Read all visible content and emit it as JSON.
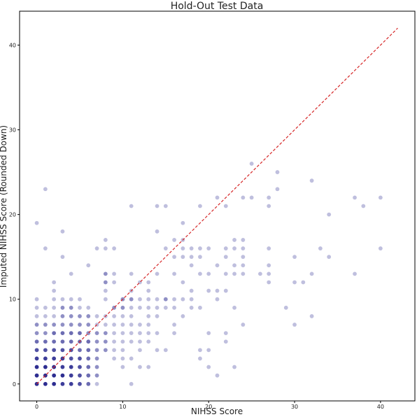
{
  "chart_data": {
    "type": "scatter",
    "title": "Hold-Out Test Data",
    "xlabel": "NIHSS Score",
    "ylabel": "Imputed NIHSS Score (Rounded Down)",
    "xlim": [
      -2,
      44
    ],
    "ylim": [
      -2,
      44
    ],
    "xticks": [
      0,
      10,
      20,
      30,
      40
    ],
    "yticks": [
      0,
      10,
      20,
      30,
      40
    ],
    "grid": false,
    "point_color": "#00007a",
    "line_color": "#d62728",
    "reference_line": {
      "x": [
        0,
        42
      ],
      "y": [
        0,
        42
      ],
      "style": "dashed"
    },
    "points": [
      [
        0,
        0,
        6
      ],
      [
        0,
        1,
        6
      ],
      [
        0,
        2,
        6
      ],
      [
        0,
        3,
        5
      ],
      [
        0,
        4,
        4
      ],
      [
        0,
        5,
        3
      ],
      [
        0,
        6,
        2
      ],
      [
        0,
        7,
        2
      ],
      [
        0,
        8,
        1
      ],
      [
        0,
        9,
        1
      ],
      [
        0,
        10,
        1
      ],
      [
        0,
        19,
        1
      ],
      [
        1,
        0,
        6
      ],
      [
        1,
        1,
        6
      ],
      [
        1,
        2,
        6
      ],
      [
        1,
        3,
        5
      ],
      [
        1,
        4,
        4
      ],
      [
        1,
        5,
        3
      ],
      [
        1,
        6,
        2
      ],
      [
        1,
        7,
        2
      ],
      [
        1,
        8,
        1
      ],
      [
        1,
        9,
        1
      ],
      [
        1,
        16,
        1
      ],
      [
        1,
        23,
        1
      ],
      [
        2,
        0,
        6
      ],
      [
        2,
        1,
        6
      ],
      [
        2,
        2,
        6
      ],
      [
        2,
        3,
        5
      ],
      [
        2,
        4,
        4
      ],
      [
        2,
        5,
        3
      ],
      [
        2,
        6,
        3
      ],
      [
        2,
        7,
        2
      ],
      [
        2,
        8,
        1
      ],
      [
        2,
        9,
        1
      ],
      [
        2,
        10,
        1
      ],
      [
        2,
        11,
        1
      ],
      [
        2,
        12,
        1
      ],
      [
        3,
        0,
        5
      ],
      [
        3,
        1,
        6
      ],
      [
        3,
        2,
        5
      ],
      [
        3,
        3,
        5
      ],
      [
        3,
        4,
        4
      ],
      [
        3,
        5,
        3
      ],
      [
        3,
        6,
        3
      ],
      [
        3,
        7,
        2
      ],
      [
        3,
        8,
        2
      ],
      [
        3,
        9,
        2
      ],
      [
        3,
        10,
        1
      ],
      [
        3,
        15,
        1
      ],
      [
        3,
        18,
        1
      ],
      [
        4,
        0,
        5
      ],
      [
        4,
        1,
        5
      ],
      [
        4,
        2,
        5
      ],
      [
        4,
        3,
        4
      ],
      [
        4,
        4,
        4
      ],
      [
        4,
        5,
        3
      ],
      [
        4,
        6,
        3
      ],
      [
        4,
        7,
        2
      ],
      [
        4,
        8,
        2
      ],
      [
        4,
        9,
        2
      ],
      [
        4,
        10,
        1
      ],
      [
        4,
        13,
        1
      ],
      [
        5,
        0,
        4
      ],
      [
        5,
        1,
        4
      ],
      [
        5,
        2,
        4
      ],
      [
        5,
        3,
        4
      ],
      [
        5,
        4,
        3
      ],
      [
        5,
        5,
        3
      ],
      [
        5,
        6,
        3
      ],
      [
        5,
        7,
        2
      ],
      [
        5,
        8,
        2
      ],
      [
        5,
        9,
        1
      ],
      [
        5,
        10,
        1
      ],
      [
        6,
        0,
        3
      ],
      [
        6,
        1,
        3
      ],
      [
        6,
        2,
        3
      ],
      [
        6,
        3,
        3
      ],
      [
        6,
        4,
        3
      ],
      [
        6,
        5,
        3
      ],
      [
        6,
        6,
        2
      ],
      [
        6,
        7,
        2
      ],
      [
        6,
        8,
        2
      ],
      [
        6,
        9,
        1
      ],
      [
        6,
        14,
        1
      ],
      [
        7,
        0,
        1
      ],
      [
        7,
        1,
        2
      ],
      [
        7,
        2,
        2
      ],
      [
        7,
        3,
        2
      ],
      [
        7,
        4,
        2
      ],
      [
        7,
        5,
        2
      ],
      [
        7,
        6,
        2
      ],
      [
        7,
        7,
        1
      ],
      [
        7,
        8,
        1
      ],
      [
        7,
        16,
        1
      ],
      [
        8,
        4,
        2
      ],
      [
        8,
        5,
        2
      ],
      [
        8,
        6,
        2
      ],
      [
        8,
        7,
        1
      ],
      [
        8,
        8,
        1
      ],
      [
        8,
        10,
        1
      ],
      [
        8,
        11,
        1
      ],
      [
        8,
        12,
        2
      ],
      [
        8,
        13,
        2
      ],
      [
        8,
        16,
        1
      ],
      [
        8,
        17,
        1
      ],
      [
        9,
        3,
        1
      ],
      [
        9,
        4,
        1
      ],
      [
        9,
        5,
        1
      ],
      [
        9,
        6,
        1
      ],
      [
        9,
        7,
        1
      ],
      [
        9,
        8,
        1
      ],
      [
        9,
        9,
        2
      ],
      [
        9,
        12,
        1
      ],
      [
        9,
        13,
        1
      ],
      [
        9,
        16,
        1
      ],
      [
        10,
        2,
        1
      ],
      [
        10,
        3,
        1
      ],
      [
        10,
        4,
        1
      ],
      [
        10,
        5,
        1
      ],
      [
        10,
        6,
        1
      ],
      [
        10,
        7,
        1
      ],
      [
        10,
        8,
        1
      ],
      [
        10,
        9,
        2
      ],
      [
        10,
        10,
        2
      ],
      [
        11,
        0,
        1
      ],
      [
        11,
        3,
        1
      ],
      [
        11,
        5,
        1
      ],
      [
        11,
        6,
        1
      ],
      [
        11,
        7,
        1
      ],
      [
        11,
        8,
        1
      ],
      [
        11,
        9,
        1
      ],
      [
        11,
        10,
        2
      ],
      [
        11,
        11,
        1
      ],
      [
        11,
        13,
        1
      ],
      [
        11,
        21,
        1
      ],
      [
        12,
        2,
        1
      ],
      [
        12,
        4,
        1
      ],
      [
        12,
        5,
        1
      ],
      [
        12,
        6,
        1
      ],
      [
        12,
        7,
        1
      ],
      [
        12,
        9,
        1
      ],
      [
        12,
        10,
        1
      ],
      [
        12,
        12,
        1
      ],
      [
        13,
        2,
        1
      ],
      [
        13,
        5,
        1
      ],
      [
        13,
        6,
        1
      ],
      [
        13,
        7,
        1
      ],
      [
        13,
        8,
        1
      ],
      [
        13,
        9,
        1
      ],
      [
        13,
        10,
        1
      ],
      [
        13,
        11,
        1
      ],
      [
        13,
        12,
        1
      ],
      [
        14,
        4,
        1
      ],
      [
        14,
        6,
        1
      ],
      [
        14,
        8,
        1
      ],
      [
        14,
        9,
        1
      ],
      [
        14,
        10,
        1
      ],
      [
        14,
        13,
        1
      ],
      [
        14,
        18,
        1
      ],
      [
        14,
        21,
        1
      ],
      [
        15,
        4,
        1
      ],
      [
        15,
        9,
        1
      ],
      [
        15,
        10,
        2
      ],
      [
        15,
        16,
        1
      ],
      [
        15,
        21,
        1
      ],
      [
        16,
        6,
        1
      ],
      [
        16,
        7,
        1
      ],
      [
        16,
        9,
        1
      ],
      [
        16,
        10,
        1
      ],
      [
        16,
        13,
        1
      ],
      [
        16,
        15,
        1
      ],
      [
        16,
        17,
        1
      ],
      [
        17,
        8,
        1
      ],
      [
        17,
        10,
        1
      ],
      [
        17,
        12,
        1
      ],
      [
        17,
        15,
        1
      ],
      [
        17,
        16,
        1
      ],
      [
        17,
        17,
        1
      ],
      [
        17,
        19,
        1
      ],
      [
        18,
        9,
        1
      ],
      [
        18,
        10,
        1
      ],
      [
        18,
        11,
        1
      ],
      [
        18,
        14,
        1
      ],
      [
        18,
        15,
        1
      ],
      [
        18,
        16,
        1
      ],
      [
        19,
        3,
        1
      ],
      [
        19,
        4,
        1
      ],
      [
        19,
        9,
        1
      ],
      [
        19,
        13,
        1
      ],
      [
        19,
        15,
        1
      ],
      [
        19,
        16,
        1
      ],
      [
        19,
        21,
        1
      ],
      [
        20,
        2,
        1
      ],
      [
        20,
        4,
        1
      ],
      [
        20,
        6,
        1
      ],
      [
        20,
        11,
        1
      ],
      [
        20,
        13,
        1
      ],
      [
        20,
        16,
        1
      ],
      [
        21,
        1,
        1
      ],
      [
        21,
        10,
        1
      ],
      [
        21,
        11,
        1
      ],
      [
        21,
        14,
        1
      ],
      [
        21,
        22,
        1
      ],
      [
        22,
        5,
        1
      ],
      [
        22,
        6,
        1
      ],
      [
        22,
        11,
        1
      ],
      [
        22,
        13,
        1
      ],
      [
        22,
        15,
        1
      ],
      [
        22,
        16,
        1
      ],
      [
        22,
        21,
        1
      ],
      [
        23,
        2,
        1
      ],
      [
        23,
        9,
        1
      ],
      [
        23,
        13,
        1
      ],
      [
        23,
        14,
        1
      ],
      [
        23,
        16,
        1
      ],
      [
        23,
        17,
        1
      ],
      [
        24,
        7,
        1
      ],
      [
        24,
        13,
        1
      ],
      [
        24,
        14,
        1
      ],
      [
        24,
        15,
        1
      ],
      [
        24,
        16,
        1
      ],
      [
        24,
        17,
        1
      ],
      [
        24,
        22,
        1
      ],
      [
        25,
        22,
        1
      ],
      [
        25,
        26,
        1
      ],
      [
        26,
        13,
        1
      ],
      [
        27,
        12,
        1
      ],
      [
        27,
        13,
        1
      ],
      [
        27,
        14,
        1
      ],
      [
        27,
        16,
        1
      ],
      [
        27,
        21,
        1
      ],
      [
        27,
        22,
        1
      ],
      [
        28,
        23,
        1
      ],
      [
        28,
        25,
        1
      ],
      [
        29,
        9,
        1
      ],
      [
        30,
        7,
        1
      ],
      [
        30,
        12,
        1
      ],
      [
        30,
        15,
        1
      ],
      [
        31,
        12,
        1
      ],
      [
        32,
        8,
        1
      ],
      [
        32,
        13,
        1
      ],
      [
        32,
        24,
        1
      ],
      [
        33,
        16,
        1
      ],
      [
        34,
        15,
        1
      ],
      [
        34,
        20,
        1
      ],
      [
        37,
        13,
        1
      ],
      [
        37,
        22,
        1
      ],
      [
        38,
        21,
        1
      ],
      [
        40,
        16,
        1
      ],
      [
        40,
        22,
        1
      ]
    ]
  }
}
